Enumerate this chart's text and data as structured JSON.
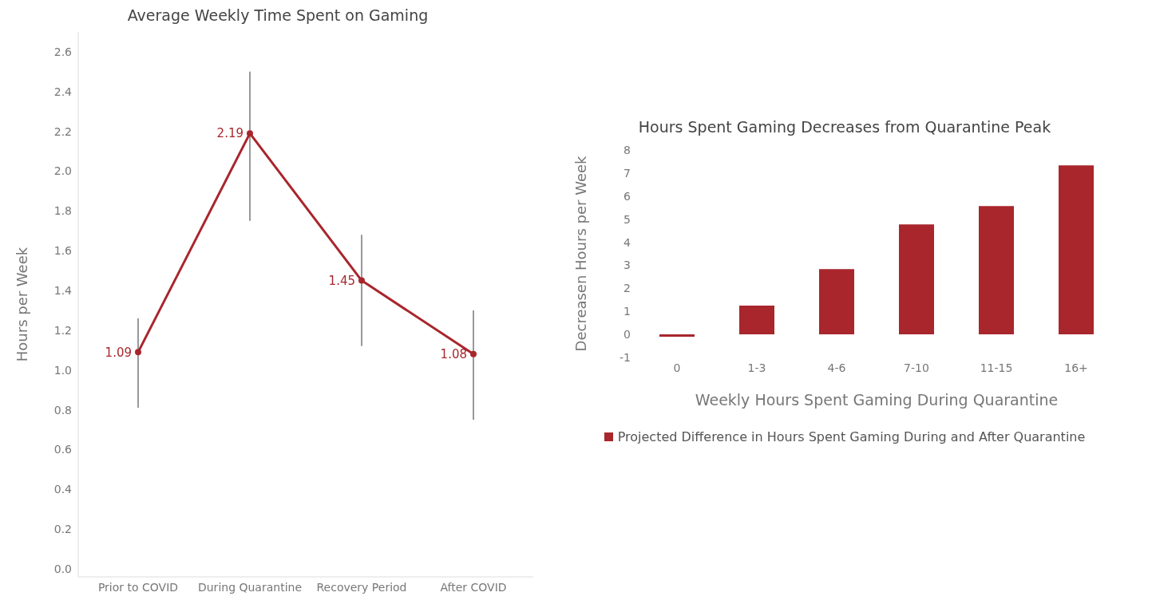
{
  "chart_data": [
    {
      "type": "line",
      "title": "Average Weekly Time Spent on Gaming",
      "ylabel": "Hours per Week",
      "categories": [
        "Prior to COVID",
        "During Quarantine",
        "Recovery Period",
        "After COVID"
      ],
      "series": [
        {
          "color": "#a8262c",
          "values": [
            1.09,
            2.19,
            1.45,
            1.08
          ],
          "errors": [
            [
              0.81,
              1.26
            ],
            [
              1.75,
              2.5
            ],
            [
              1.12,
              1.68
            ],
            [
              0.75,
              1.3
            ]
          ]
        }
      ],
      "marker": "circle",
      "data_labels": true,
      "ylim": [
        -0.04,
        2.7
      ],
      "yticks": [
        {
          "value": 0,
          "label": "0.0"
        },
        {
          "value": 0.2,
          "label": "0.2"
        },
        {
          "value": 0.4,
          "label": "0.4"
        },
        {
          "value": 0.6,
          "label": "0.6"
        },
        {
          "value": 0.8,
          "label": "0.8"
        },
        {
          "value": 1,
          "label": "1.0"
        },
        {
          "value": 1.2,
          "label": "1.2"
        },
        {
          "value": 1.4,
          "label": "1.4"
        },
        {
          "value": 1.6,
          "label": "1.6"
        },
        {
          "value": 1.8,
          "label": "1.8"
        },
        {
          "value": 2,
          "label": "2.0"
        },
        {
          "value": 2.2,
          "label": "2.2"
        },
        {
          "value": 2.4,
          "label": "2.4"
        },
        {
          "value": 2.6,
          "label": "2.6"
        }
      ]
    },
    {
      "type": "bar",
      "title": "Hours Spent Gaming Decreases from Quarantine Peak",
      "xlabel": "Weekly Hours Spent Gaming During Quarantine",
      "ylabel": "Decreasen Hours per Week",
      "categories": [
        "0",
        "1-3",
        "4-6",
        "7-10",
        "11-15",
        "16+"
      ],
      "series": [
        {
          "name": "Projected Difference in Hours Spent Gaming During and After Quarantine",
          "color": "#a8262c",
          "values": [
            -0.1,
            1.25,
            2.83,
            4.77,
            5.57,
            7.33
          ]
        }
      ],
      "ylim": [
        -1,
        8
      ],
      "yticks": [
        -1,
        0,
        1,
        2,
        3,
        4,
        5,
        6,
        7,
        8
      ],
      "legend": "bottom"
    }
  ]
}
